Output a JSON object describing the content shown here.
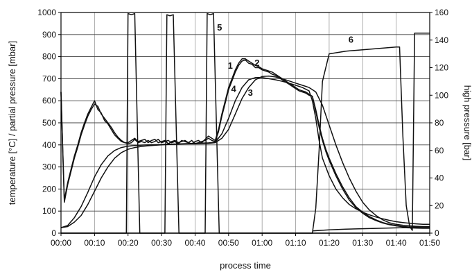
{
  "chart_data": {
    "type": "line",
    "xlabel": "process time",
    "ylabel": "temperature [°C] / partial pressure [mbar]",
    "y2label": "high pressure [bar]",
    "x_unit": "minutes",
    "xlim": [
      0,
      110
    ],
    "ylim": [
      0,
      1000
    ],
    "y2lim": [
      0,
      160
    ],
    "grid": true,
    "x_ticks": [
      {
        "v": 0,
        "label": "00:00"
      },
      {
        "v": 10,
        "label": "00:10"
      },
      {
        "v": 20,
        "label": "00:20"
      },
      {
        "v": 30,
        "label": "00:30"
      },
      {
        "v": 40,
        "label": "00:40"
      },
      {
        "v": 50,
        "label": "00:50"
      },
      {
        "v": 60,
        "label": "01:00"
      },
      {
        "v": 70,
        "label": "01:10"
      },
      {
        "v": 80,
        "label": "01:20"
      },
      {
        "v": 90,
        "label": "01:30"
      },
      {
        "v": 100,
        "label": "01:40"
      },
      {
        "v": 110,
        "label": "01:50"
      }
    ],
    "y_ticks": [
      {
        "v": 0,
        "label": "0"
      },
      {
        "v": 100,
        "label": "100"
      },
      {
        "v": 200,
        "label": "200"
      },
      {
        "v": 300,
        "label": "300"
      },
      {
        "v": 400,
        "label": "400"
      },
      {
        "v": 500,
        "label": "500"
      },
      {
        "v": 600,
        "label": "600"
      },
      {
        "v": 700,
        "label": "700"
      },
      {
        "v": 800,
        "label": "800"
      },
      {
        "v": 900,
        "label": "900"
      },
      {
        "v": 1000,
        "label": "1000"
      }
    ],
    "y2_ticks": [
      {
        "v": 0,
        "label": "0"
      },
      {
        "v": 20,
        "label": "20"
      },
      {
        "v": 40,
        "label": "40"
      },
      {
        "v": 60,
        "label": "60"
      },
      {
        "v": 80,
        "label": "80"
      },
      {
        "v": 100,
        "label": "100"
      },
      {
        "v": 120,
        "label": "120"
      },
      {
        "v": 140,
        "label": "140"
      },
      {
        "v": 160,
        "label": "160"
      }
    ],
    "series": [
      {
        "name": "1",
        "axis": "left",
        "label_at": [
          50.5,
          745
        ],
        "x": [
          0,
          1,
          2,
          3,
          4,
          5,
          6,
          7,
          8,
          9,
          10,
          11,
          12,
          13,
          14,
          15,
          16,
          17,
          18,
          19,
          20,
          21,
          22,
          23,
          24,
          25,
          26,
          27,
          28,
          29,
          30,
          31,
          32,
          33,
          34,
          35,
          36,
          37,
          38,
          39,
          40,
          41,
          42,
          43,
          44,
          45,
          46,
          47,
          48,
          49,
          50,
          51,
          52,
          53,
          54,
          55,
          56,
          57,
          58,
          59,
          60,
          61,
          62,
          63,
          64,
          65,
          66,
          67,
          68,
          69,
          70,
          71,
          72,
          73,
          74,
          75,
          76,
          77,
          78,
          79,
          80,
          82,
          84,
          86,
          88,
          90,
          92,
          94,
          96,
          98,
          100,
          102,
          104,
          106,
          108,
          110
        ],
        "y": [
          640,
          150,
          230,
          290,
          350,
          400,
          455,
          500,
          540,
          570,
          600,
          560,
          545,
          510,
          495,
          470,
          445,
          430,
          415,
          410,
          410,
          420,
          430,
          415,
          420,
          425,
          410,
          420,
          425,
          410,
          415,
          420,
          405,
          415,
          420,
          410,
          415,
          420,
          410,
          405,
          415,
          420,
          410,
          425,
          440,
          430,
          420,
          470,
          540,
          600,
          660,
          700,
          740,
          770,
          790,
          790,
          780,
          770,
          760,
          755,
          745,
          740,
          735,
          730,
          720,
          710,
          700,
          690,
          680,
          670,
          660,
          650,
          645,
          640,
          630,
          620,
          560,
          490,
          430,
          380,
          340,
          270,
          210,
          160,
          120,
          95,
          75,
          60,
          48,
          40,
          35,
          30,
          28,
          27,
          27,
          27
        ]
      },
      {
        "name": "2",
        "axis": "left",
        "label_at": [
          58.5,
          758
        ],
        "x": [
          0,
          1,
          2,
          3,
          4,
          5,
          6,
          7,
          8,
          9,
          10,
          11,
          12,
          13,
          14,
          15,
          16,
          17,
          18,
          19,
          20,
          21,
          22,
          23,
          24,
          25,
          26,
          27,
          28,
          29,
          30,
          31,
          32,
          33,
          34,
          35,
          36,
          37,
          38,
          39,
          40,
          41,
          42,
          43,
          44,
          45,
          46,
          47,
          48,
          49,
          50,
          51,
          52,
          53,
          54,
          55,
          56,
          57,
          58,
          59,
          60,
          61,
          62,
          63,
          64,
          65,
          66,
          67,
          68,
          69,
          70,
          71,
          72,
          73,
          74,
          75,
          76,
          77,
          78,
          79,
          80,
          82,
          84,
          86,
          88,
          90,
          92,
          94,
          96,
          98,
          100,
          102,
          104,
          106,
          108,
          110
        ],
        "y": [
          640,
          140,
          220,
          280,
          340,
          390,
          445,
          490,
          530,
          560,
          585,
          575,
          540,
          520,
          500,
          480,
          455,
          435,
          420,
          410,
          405,
          410,
          425,
          410,
          415,
          410,
          420,
          410,
          415,
          425,
          410,
          415,
          420,
          410,
          415,
          405,
          420,
          415,
          410,
          420,
          405,
          410,
          415,
          420,
          430,
          420,
          415,
          460,
          530,
          590,
          650,
          690,
          730,
          760,
          780,
          785,
          770,
          765,
          750,
          750,
          740,
          735,
          730,
          720,
          715,
          705,
          695,
          685,
          675,
          665,
          655,
          645,
          640,
          635,
          625,
          620,
          550,
          480,
          420,
          370,
          330,
          260,
          200,
          150,
          115,
          90,
          70,
          57,
          46,
          38,
          33,
          29,
          27,
          27,
          27,
          27
        ]
      },
      {
        "name": "3",
        "axis": "left",
        "label_at": [
          56.5,
          622
        ],
        "x": [
          0,
          2,
          4,
          6,
          8,
          10,
          12,
          14,
          16,
          18,
          20,
          22,
          24,
          26,
          28,
          30,
          32,
          34,
          36,
          38,
          40,
          42,
          44,
          46,
          48,
          50,
          52,
          54,
          56,
          58,
          60,
          62,
          64,
          66,
          68,
          70,
          72,
          74,
          76,
          78,
          80,
          82,
          84,
          86,
          88,
          90,
          92,
          94,
          96,
          98,
          100,
          102,
          104,
          106,
          108,
          110
        ],
        "y": [
          25,
          30,
          50,
          80,
          130,
          190,
          250,
          300,
          340,
          365,
          380,
          388,
          393,
          396,
          398,
          400,
          402,
          403,
          404,
          405,
          405,
          406,
          407,
          410,
          430,
          470,
          540,
          610,
          660,
          695,
          710,
          712,
          708,
          700,
          690,
          680,
          670,
          660,
          640,
          580,
          490,
          400,
          320,
          250,
          190,
          140,
          105,
          80,
          60,
          47,
          40,
          36,
          33,
          31,
          30,
          30
        ]
      },
      {
        "name": "4",
        "axis": "left",
        "label_at": [
          51.5,
          640
        ],
        "x": [
          0,
          2,
          4,
          6,
          8,
          10,
          12,
          14,
          16,
          18,
          20,
          22,
          24,
          26,
          28,
          30,
          32,
          34,
          36,
          38,
          40,
          42,
          44,
          46,
          48,
          50,
          52,
          54,
          56,
          58,
          60,
          62,
          64,
          66,
          68,
          70,
          72,
          74,
          75,
          76,
          77,
          78,
          80,
          82,
          84,
          86,
          88,
          90,
          92,
          94,
          96,
          98,
          100,
          102,
          104,
          106,
          108,
          110
        ],
        "y": [
          25,
          35,
          70,
          120,
          185,
          255,
          310,
          350,
          375,
          388,
          394,
          397,
          399,
          400,
          401,
          402,
          403,
          404,
          405,
          406,
          407,
          408,
          409,
          412,
          450,
          520,
          600,
          660,
          695,
          705,
          705,
          700,
          695,
          688,
          680,
          670,
          660,
          645,
          600,
          520,
          420,
          340,
          260,
          200,
          160,
          130,
          110,
          95,
          83,
          73,
          65,
          58,
          52,
          48,
          45,
          42,
          40,
          40
        ]
      },
      {
        "name": "5",
        "axis": "left",
        "label_at": [
          47.3,
          918
        ],
        "x": [
          0,
          0.7,
          1,
          19.5,
          20,
          21,
          22,
          23.5,
          24,
          31,
          31.6,
          32.5,
          33.5,
          35.2,
          36,
          43,
          43.6,
          44.5,
          45.5,
          47.2,
          48,
          110
        ],
        "y": [
          0,
          0,
          0,
          0,
          995,
          990,
          995,
          0,
          0,
          0,
          990,
          985,
          990,
          0,
          0,
          0,
          995,
          990,
          995,
          0,
          0,
          0
        ]
      },
      {
        "name": "6",
        "axis": "right",
        "label_at": [
          86.5,
          138
        ],
        "x": [
          0,
          74,
          75,
          76,
          77,
          78,
          80,
          85,
          90,
          95,
          100,
          101,
          102,
          103,
          104,
          104.8,
          105.5,
          107,
          110
        ],
        "y": [
          0,
          0,
          0,
          18,
          60,
          110,
          130,
          132,
          133,
          134,
          135,
          135,
          70,
          20,
          5,
          2,
          145,
          145,
          145
        ]
      },
      {
        "name": "",
        "axis": "left",
        "x": [
          75,
          80,
          85,
          90,
          95,
          100,
          102,
          104,
          106,
          108,
          110
        ],
        "y": [
          10,
          15,
          18,
          20,
          22,
          24,
          25,
          24,
          23,
          22,
          22
        ]
      }
    ]
  }
}
